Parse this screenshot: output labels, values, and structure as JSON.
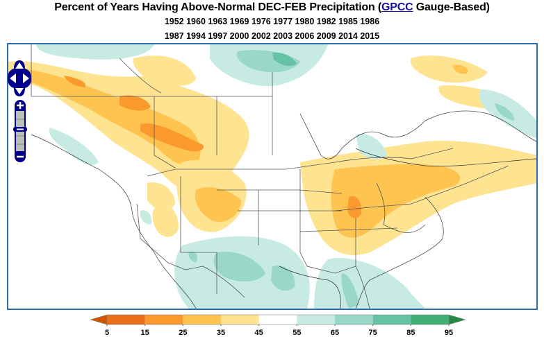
{
  "title": {
    "prefix": "Percent of Years Having Above-Normal DEC-FEB Precipitation (",
    "link": "GPCC",
    "suffix": " Gauge-Based)"
  },
  "years": {
    "line1": "1952 1960 1963 1969 1976 1977 1980 1982 1985 1986",
    "line2": "1987 1994 1997 2000 2002 2003 2006 2009 2014 2015"
  },
  "map_controls": {
    "pan": [
      "pan-up",
      "pan-left",
      "pan-right",
      "pan-down"
    ],
    "zoom_in": "+",
    "zoom_out": "−"
  },
  "colorbar": {
    "ticks": [
      "5",
      "15",
      "25",
      "35",
      "45",
      "55",
      "65",
      "75",
      "85",
      "95"
    ],
    "colors": [
      "#e8701a",
      "#fb9a2c",
      "#fec44f",
      "#fee391",
      "#ffffff",
      "#c7eae3",
      "#99d8c9",
      "#66c2a4",
      "#41ae76"
    ],
    "under_color": "#cc5500",
    "over_color": "#238b45"
  },
  "map": {
    "frame_color": "#2b6cb0"
  }
}
